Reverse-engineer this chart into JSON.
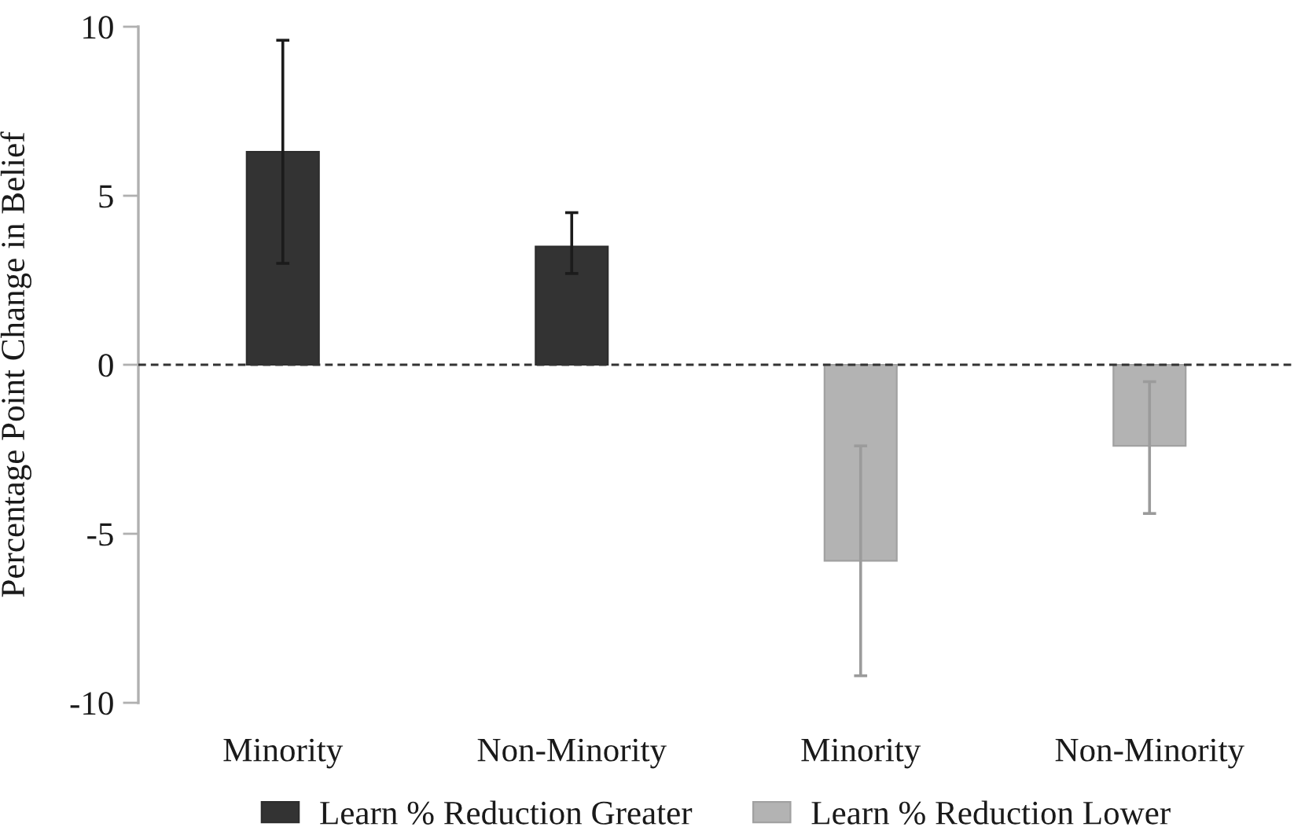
{
  "chart_data": {
    "type": "bar",
    "ylabel": "Percentage Point Change in Belief",
    "categories": [
      "Minority",
      "Non-Minority",
      "Minority",
      "Non-Minority"
    ],
    "series": [
      {
        "name": "Learn % Reduction Greater",
        "color": "#333333",
        "values": [
          6.3,
          3.5,
          null,
          null
        ],
        "errors": [
          [
            3.0,
            9.6
          ],
          [
            2.7,
            4.5
          ],
          null,
          null
        ]
      },
      {
        "name": "Learn % Reduction Lower",
        "color": "#b3b3b3",
        "values": [
          null,
          null,
          -5.8,
          -2.4
        ],
        "errors": [
          null,
          null,
          [
            -9.2,
            -2.4
          ],
          [
            -4.4,
            -0.5
          ]
        ]
      }
    ],
    "ylim": [
      -10,
      10
    ],
    "yticks": [
      -10,
      -5,
      0,
      5,
      10
    ],
    "ref_lines": [
      {
        "axis": "y",
        "value": 0,
        "color": "#333333",
        "line_style": "dashed"
      }
    ],
    "grid": false,
    "legend": "bottom"
  }
}
